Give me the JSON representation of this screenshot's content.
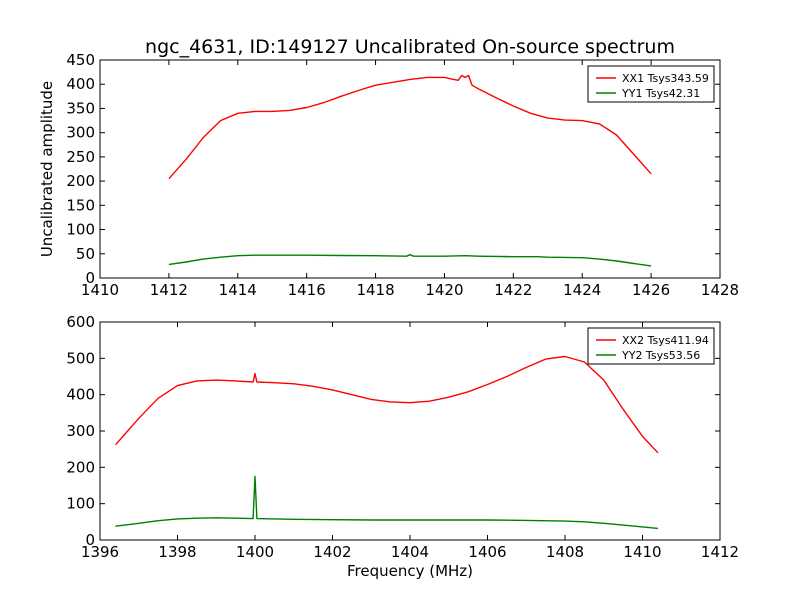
{
  "chart_data": [
    {
      "type": "line",
      "title": "ngc_4631, ID:149127 Uncalibrated On-source spectrum",
      "xlabel": "",
      "ylabel": "Uncalibrated amplitude",
      "xlim": [
        1410,
        1428
      ],
      "ylim": [
        0,
        450
      ],
      "xticks": [
        1410,
        1412,
        1414,
        1416,
        1418,
        1420,
        1422,
        1424,
        1426,
        1428
      ],
      "yticks": [
        0,
        50,
        100,
        150,
        200,
        250,
        300,
        350,
        400,
        450
      ],
      "legend_position": "top-right",
      "series": [
        {
          "name": "XX1 Tsys343.59",
          "color": "#ff0000",
          "x": [
            1412.0,
            1412.5,
            1413.0,
            1413.5,
            1414.0,
            1414.5,
            1415.0,
            1415.5,
            1416.0,
            1416.5,
            1417.0,
            1417.5,
            1418.0,
            1418.5,
            1419.0,
            1419.5,
            1420.0,
            1420.2,
            1420.4,
            1420.5,
            1420.6,
            1420.7,
            1420.8,
            1421.0,
            1421.5,
            1422.0,
            1422.5,
            1423.0,
            1423.5,
            1424.0,
            1424.5,
            1425.0,
            1425.5,
            1426.0
          ],
          "y": [
            205,
            245,
            290,
            325,
            340,
            344,
            344,
            346,
            352,
            362,
            375,
            387,
            398,
            404,
            410,
            414,
            414,
            411,
            408,
            418,
            414,
            418,
            398,
            390,
            372,
            355,
            340,
            330,
            326,
            325,
            318,
            295,
            255,
            215
          ]
        },
        {
          "name": "YY1 Tsys42.31",
          "color": "#008000",
          "x": [
            1412.0,
            1412.5,
            1413.0,
            1413.5,
            1414.0,
            1414.5,
            1415.0,
            1416.0,
            1417.0,
            1418.0,
            1418.9,
            1419.0,
            1419.1,
            1420.0,
            1420.6,
            1421.0,
            1422.0,
            1422.7,
            1423.0,
            1424.0,
            1424.5,
            1425.0,
            1425.5,
            1426.0
          ],
          "y": [
            28,
            33,
            39,
            43,
            46,
            47,
            47,
            47,
            46.5,
            46,
            45,
            48,
            45,
            45,
            46,
            45,
            44,
            44,
            43,
            42,
            39,
            35,
            30,
            25
          ]
        }
      ]
    },
    {
      "type": "line",
      "title": "",
      "xlabel": "Frequency (MHz)",
      "ylabel": "",
      "xlim": [
        1396,
        1412
      ],
      "ylim": [
        0,
        600
      ],
      "xticks": [
        1396,
        1398,
        1400,
        1402,
        1404,
        1406,
        1408,
        1410,
        1412
      ],
      "yticks": [
        0,
        100,
        200,
        300,
        400,
        500,
        600
      ],
      "legend_position": "top-right",
      "series": [
        {
          "name": "XX2 Tsys411.94",
          "color": "#ff0000",
          "x": [
            1396.4,
            1397.0,
            1397.5,
            1398.0,
            1398.5,
            1399.0,
            1399.5,
            1399.95,
            1400.0,
            1400.05,
            1400.5,
            1401.0,
            1401.5,
            1402.0,
            1402.5,
            1403.0,
            1403.5,
            1404.0,
            1404.5,
            1405.0,
            1405.5,
            1406.0,
            1406.5,
            1407.0,
            1407.5,
            1408.0,
            1408.5,
            1409.0,
            1409.5,
            1410.0,
            1410.4
          ],
          "y": [
            262,
            335,
            390,
            425,
            438,
            440,
            438,
            435,
            458,
            435,
            433,
            430,
            423,
            413,
            400,
            387,
            380,
            378,
            382,
            393,
            408,
            428,
            450,
            475,
            498,
            505,
            490,
            440,
            360,
            285,
            240
          ]
        },
        {
          "name": "YY2 Tsys53.56",
          "color": "#008000",
          "x": [
            1396.4,
            1397.0,
            1397.5,
            1398.0,
            1398.5,
            1399.0,
            1399.5,
            1399.95,
            1400.0,
            1400.05,
            1400.5,
            1401.0,
            1402.0,
            1403.0,
            1404.0,
            1405.0,
            1406.0,
            1407.0,
            1408.0,
            1408.5,
            1409.0,
            1409.5,
            1410.0,
            1410.4
          ],
          "y": [
            38,
            46,
            53,
            58,
            60,
            61,
            60,
            59,
            175,
            59,
            58,
            57,
            56,
            55,
            55,
            55,
            55,
            54,
            52,
            50,
            46,
            41,
            36,
            32
          ]
        }
      ]
    }
  ]
}
